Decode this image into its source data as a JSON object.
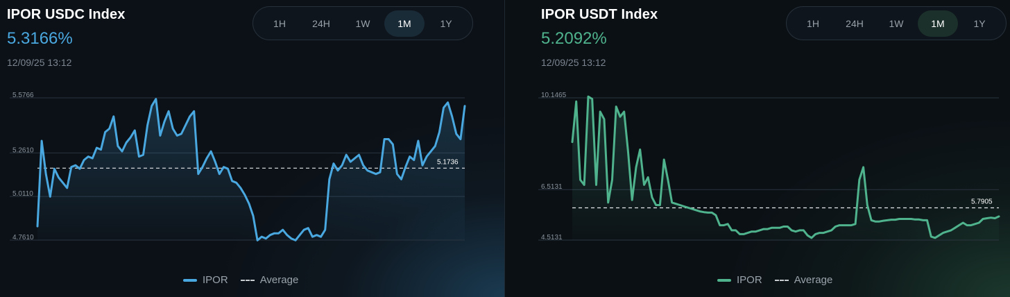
{
  "timeframes": [
    "1H",
    "24H",
    "1W",
    "1M",
    "1Y"
  ],
  "active_timeframe": "1M",
  "legend": {
    "series_label": "IPOR",
    "average_label": "Average"
  },
  "colors": {
    "usdc": "#4aa8e0",
    "usdt": "#4fb38d",
    "grid": "#2a3440",
    "average_line": "#e6e9ec"
  },
  "panels": {
    "usdc": {
      "title": "IPOR USDC Index",
      "value": "5.3166%",
      "date": "12/09/25 13:12"
    },
    "usdt": {
      "title": "IPOR USDT Index",
      "value": "5.2092%",
      "date": "12/09/25 13:12"
    }
  },
  "chart_data": [
    {
      "id": "usdc",
      "type": "line",
      "title": "IPOR USDC Index",
      "color": "#4aa8e0",
      "ylim": [
        4.761,
        5.5766
      ],
      "yticks": [
        5.5766,
        5.261,
        5.011,
        4.761
      ],
      "ytick_labels": [
        "5.5766",
        "5.2610",
        "5.0110",
        "4.7610"
      ],
      "average": 5.1736,
      "average_label": "5.1736",
      "series": [
        {
          "name": "IPOR",
          "values": [
            4.84,
            5.33,
            5.14,
            5.01,
            5.17,
            5.12,
            5.09,
            5.06,
            5.18,
            5.19,
            5.17,
            5.22,
            5.24,
            5.23,
            5.29,
            5.28,
            5.38,
            5.4,
            5.47,
            5.3,
            5.27,
            5.32,
            5.35,
            5.39,
            5.24,
            5.25,
            5.42,
            5.53,
            5.57,
            5.36,
            5.44,
            5.5,
            5.4,
            5.36,
            5.37,
            5.42,
            5.47,
            5.5,
            5.14,
            5.18,
            5.23,
            5.27,
            5.21,
            5.14,
            5.18,
            5.17,
            5.1,
            5.09,
            5.06,
            5.02,
            4.97,
            4.9,
            4.76,
            4.78,
            4.77,
            4.79,
            4.8,
            4.8,
            4.82,
            4.79,
            4.77,
            4.76,
            4.79,
            4.82,
            4.83,
            4.78,
            4.79,
            4.78,
            4.82,
            5.11,
            5.2,
            5.16,
            5.19,
            5.25,
            5.21,
            5.23,
            5.25,
            5.19,
            5.16,
            5.15,
            5.14,
            5.15,
            5.34,
            5.34,
            5.31,
            5.14,
            5.11,
            5.18,
            5.24,
            5.22,
            5.33,
            5.19,
            5.24,
            5.27,
            5.3,
            5.38,
            5.52,
            5.55,
            5.47,
            5.37,
            5.34,
            5.53
          ]
        }
      ]
    },
    {
      "id": "usdt",
      "type": "line",
      "title": "IPOR USDT Index",
      "color": "#4fb38d",
      "ylim": [
        4.5131,
        10.1465
      ],
      "yticks": [
        10.1465,
        6.5131,
        4.5131
      ],
      "ytick_labels": [
        "10.1465",
        "6.5131",
        "4.5131"
      ],
      "average": 5.7905,
      "average_label": "5.7905",
      "series": [
        {
          "name": "IPOR",
          "values": [
            8.4,
            10.0,
            6.9,
            6.7,
            10.2,
            10.1,
            6.7,
            9.6,
            9.3,
            6.0,
            6.9,
            9.8,
            9.4,
            9.6,
            8.0,
            6.1,
            7.4,
            8.1,
            6.7,
            7.0,
            6.2,
            5.9,
            5.9,
            7.7,
            6.9,
            6.0,
            5.95,
            5.9,
            5.85,
            5.8,
            5.75,
            5.7,
            5.65,
            5.62,
            5.6,
            5.6,
            5.5,
            5.1,
            5.1,
            5.15,
            4.9,
            4.9,
            4.75,
            4.75,
            4.8,
            4.85,
            4.85,
            4.9,
            4.95,
            4.95,
            5.0,
            5.0,
            5.0,
            5.05,
            5.05,
            4.9,
            4.85,
            4.9,
            4.9,
            4.7,
            4.6,
            4.75,
            4.8,
            4.8,
            4.85,
            4.9,
            5.05,
            5.1,
            5.1,
            5.1,
            5.1,
            5.15,
            6.9,
            7.4,
            5.9,
            5.3,
            5.25,
            5.25,
            5.28,
            5.3,
            5.32,
            5.32,
            5.35,
            5.35,
            5.35,
            5.35,
            5.33,
            5.33,
            5.3,
            5.3,
            4.65,
            4.6,
            4.7,
            4.8,
            4.85,
            4.9,
            5.0,
            5.1,
            5.2,
            5.1,
            5.1,
            5.15,
            5.2,
            5.35,
            5.38,
            5.4,
            5.38,
            5.45
          ]
        }
      ]
    }
  ]
}
